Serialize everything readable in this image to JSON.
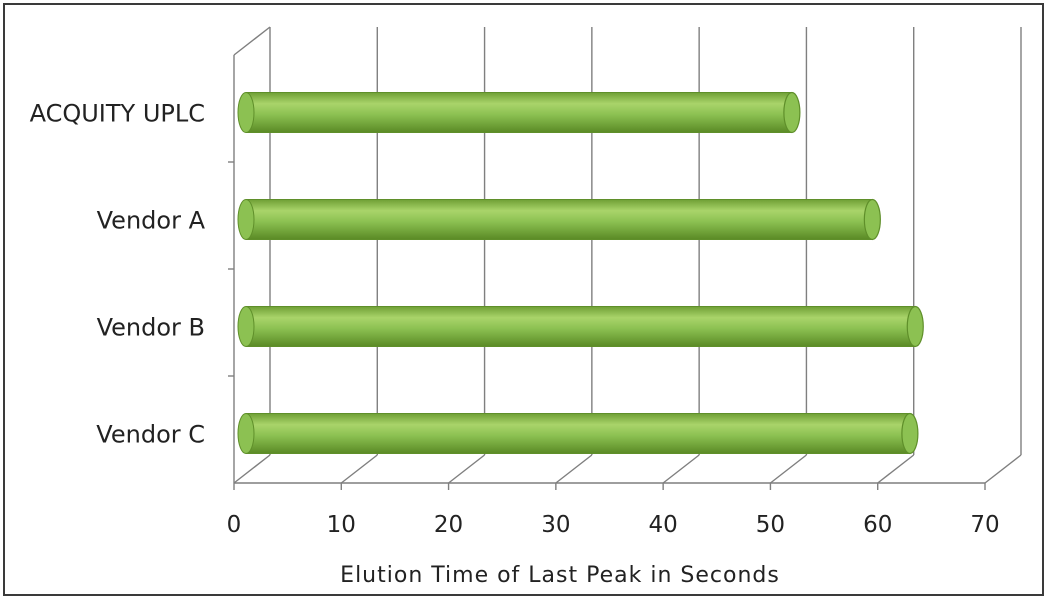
{
  "chart_data": {
    "type": "bar",
    "orientation": "horizontal",
    "style": "3d-cylinder",
    "categories": [
      "ACQUITY UPLC",
      "Vendor A",
      "Vendor B",
      "Vendor C"
    ],
    "values": [
      52,
      59.5,
      63.5,
      63
    ],
    "title": "",
    "xlabel": "Elution Time of Last Peak in Seconds",
    "ylabel": "",
    "xlim": [
      0,
      70
    ],
    "ticks": [
      "0",
      "10",
      "20",
      "30",
      "40",
      "50",
      "60",
      "70"
    ],
    "grid": true,
    "legend": "none",
    "bar_color": "#8cc152",
    "bar_color_dark": "#5f8f2a",
    "grid_color": "#7f7f7f"
  }
}
